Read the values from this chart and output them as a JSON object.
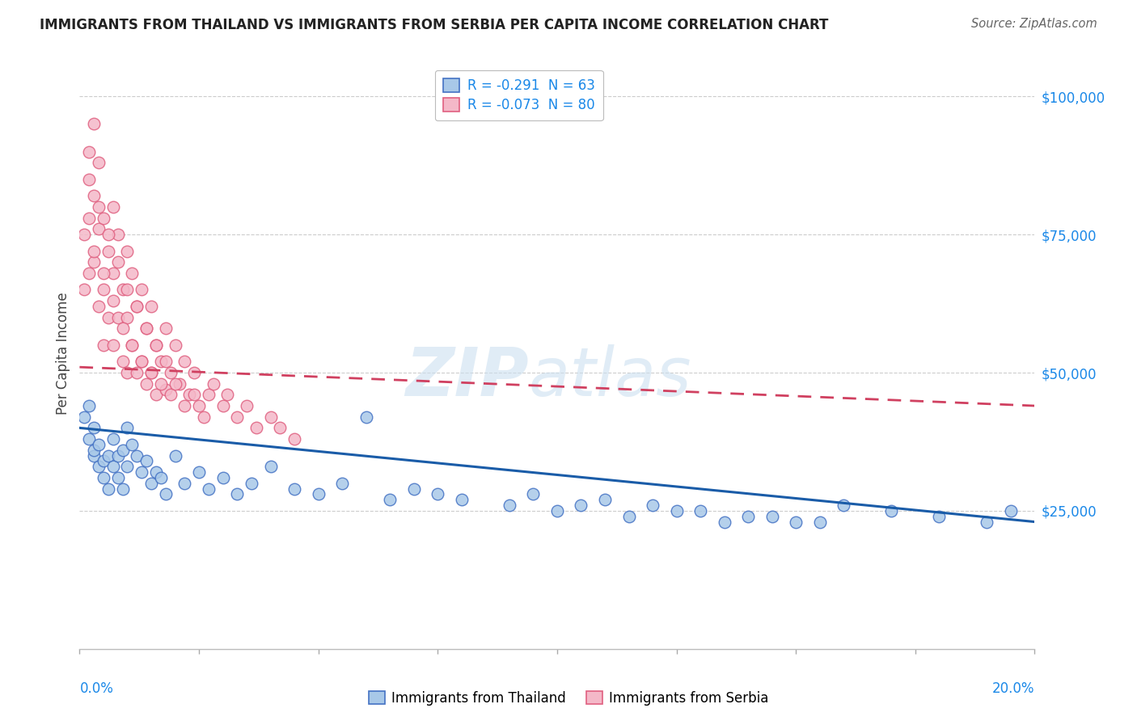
{
  "title": "IMMIGRANTS FROM THAILAND VS IMMIGRANTS FROM SERBIA PER CAPITA INCOME CORRELATION CHART",
  "source": "Source: ZipAtlas.com",
  "ylabel": "Per Capita Income",
  "xlim": [
    0.0,
    0.2
  ],
  "ylim": [
    0,
    107000
  ],
  "color_thailand": "#a8c8e8",
  "color_thailand_edge": "#4472c4",
  "color_serbia": "#f4b8c8",
  "color_serbia_edge": "#e06080",
  "color_thailand_line": "#1a5ca8",
  "color_serbia_line": "#d04060",
  "watermark_zip": "ZIP",
  "watermark_atlas": "atlas",
  "thailand_x": [
    0.001,
    0.002,
    0.002,
    0.003,
    0.003,
    0.003,
    0.004,
    0.004,
    0.005,
    0.005,
    0.006,
    0.006,
    0.007,
    0.007,
    0.008,
    0.008,
    0.009,
    0.009,
    0.01,
    0.01,
    0.011,
    0.012,
    0.013,
    0.014,
    0.015,
    0.016,
    0.017,
    0.018,
    0.02,
    0.022,
    0.025,
    0.027,
    0.03,
    0.033,
    0.036,
    0.04,
    0.045,
    0.05,
    0.055,
    0.06,
    0.065,
    0.07,
    0.075,
    0.08,
    0.09,
    0.095,
    0.1,
    0.11,
    0.12,
    0.13,
    0.14,
    0.15,
    0.16,
    0.17,
    0.18,
    0.19,
    0.195,
    0.105,
    0.115,
    0.125,
    0.135,
    0.145,
    0.155
  ],
  "thailand_y": [
    42000,
    38000,
    44000,
    35000,
    40000,
    36000,
    33000,
    37000,
    31000,
    34000,
    29000,
    35000,
    33000,
    38000,
    31000,
    35000,
    29000,
    36000,
    40000,
    33000,
    37000,
    35000,
    32000,
    34000,
    30000,
    32000,
    31000,
    28000,
    35000,
    30000,
    32000,
    29000,
    31000,
    28000,
    30000,
    33000,
    29000,
    28000,
    30000,
    42000,
    27000,
    29000,
    28000,
    27000,
    26000,
    28000,
    25000,
    27000,
    26000,
    25000,
    24000,
    23000,
    26000,
    25000,
    24000,
    23000,
    25000,
    26000,
    24000,
    25000,
    23000,
    24000,
    23000
  ],
  "serbia_x": [
    0.001,
    0.001,
    0.002,
    0.002,
    0.002,
    0.003,
    0.003,
    0.003,
    0.004,
    0.004,
    0.004,
    0.005,
    0.005,
    0.005,
    0.006,
    0.006,
    0.007,
    0.007,
    0.007,
    0.008,
    0.008,
    0.009,
    0.009,
    0.01,
    0.01,
    0.01,
    0.011,
    0.011,
    0.012,
    0.012,
    0.013,
    0.013,
    0.014,
    0.014,
    0.015,
    0.015,
    0.016,
    0.016,
    0.017,
    0.018,
    0.018,
    0.019,
    0.02,
    0.021,
    0.022,
    0.023,
    0.024,
    0.025,
    0.027,
    0.028,
    0.03,
    0.031,
    0.033,
    0.035,
    0.037,
    0.04,
    0.042,
    0.045,
    0.002,
    0.003,
    0.004,
    0.005,
    0.006,
    0.007,
    0.008,
    0.009,
    0.01,
    0.011,
    0.012,
    0.013,
    0.014,
    0.015,
    0.016,
    0.017,
    0.018,
    0.019,
    0.02,
    0.022,
    0.024,
    0.026
  ],
  "serbia_y": [
    65000,
    75000,
    90000,
    78000,
    68000,
    95000,
    82000,
    70000,
    88000,
    76000,
    62000,
    78000,
    65000,
    55000,
    72000,
    60000,
    80000,
    68000,
    55000,
    75000,
    60000,
    65000,
    52000,
    72000,
    60000,
    50000,
    68000,
    55000,
    62000,
    50000,
    65000,
    52000,
    58000,
    48000,
    62000,
    50000,
    55000,
    46000,
    52000,
    58000,
    47000,
    50000,
    55000,
    48000,
    52000,
    46000,
    50000,
    44000,
    46000,
    48000,
    44000,
    46000,
    42000,
    44000,
    40000,
    42000,
    40000,
    38000,
    85000,
    72000,
    80000,
    68000,
    75000,
    63000,
    70000,
    58000,
    65000,
    55000,
    62000,
    52000,
    58000,
    50000,
    55000,
    48000,
    52000,
    46000,
    48000,
    44000,
    46000,
    42000
  ],
  "th_line_x": [
    0.0,
    0.2
  ],
  "th_line_y": [
    40000,
    23000
  ],
  "sr_line_x": [
    0.0,
    0.2
  ],
  "sr_line_y": [
    51000,
    44000
  ],
  "legend_labels": [
    "R = -0.291  N = 63",
    "R = -0.073  N = 80"
  ],
  "bottom_labels": [
    "Immigrants from Thailand",
    "Immigrants from Serbia"
  ],
  "yticks": [
    25000,
    50000,
    75000,
    100000
  ],
  "ytick_labels": [
    "$25,000",
    "$50,000",
    "$75,000",
    "$100,000"
  ]
}
